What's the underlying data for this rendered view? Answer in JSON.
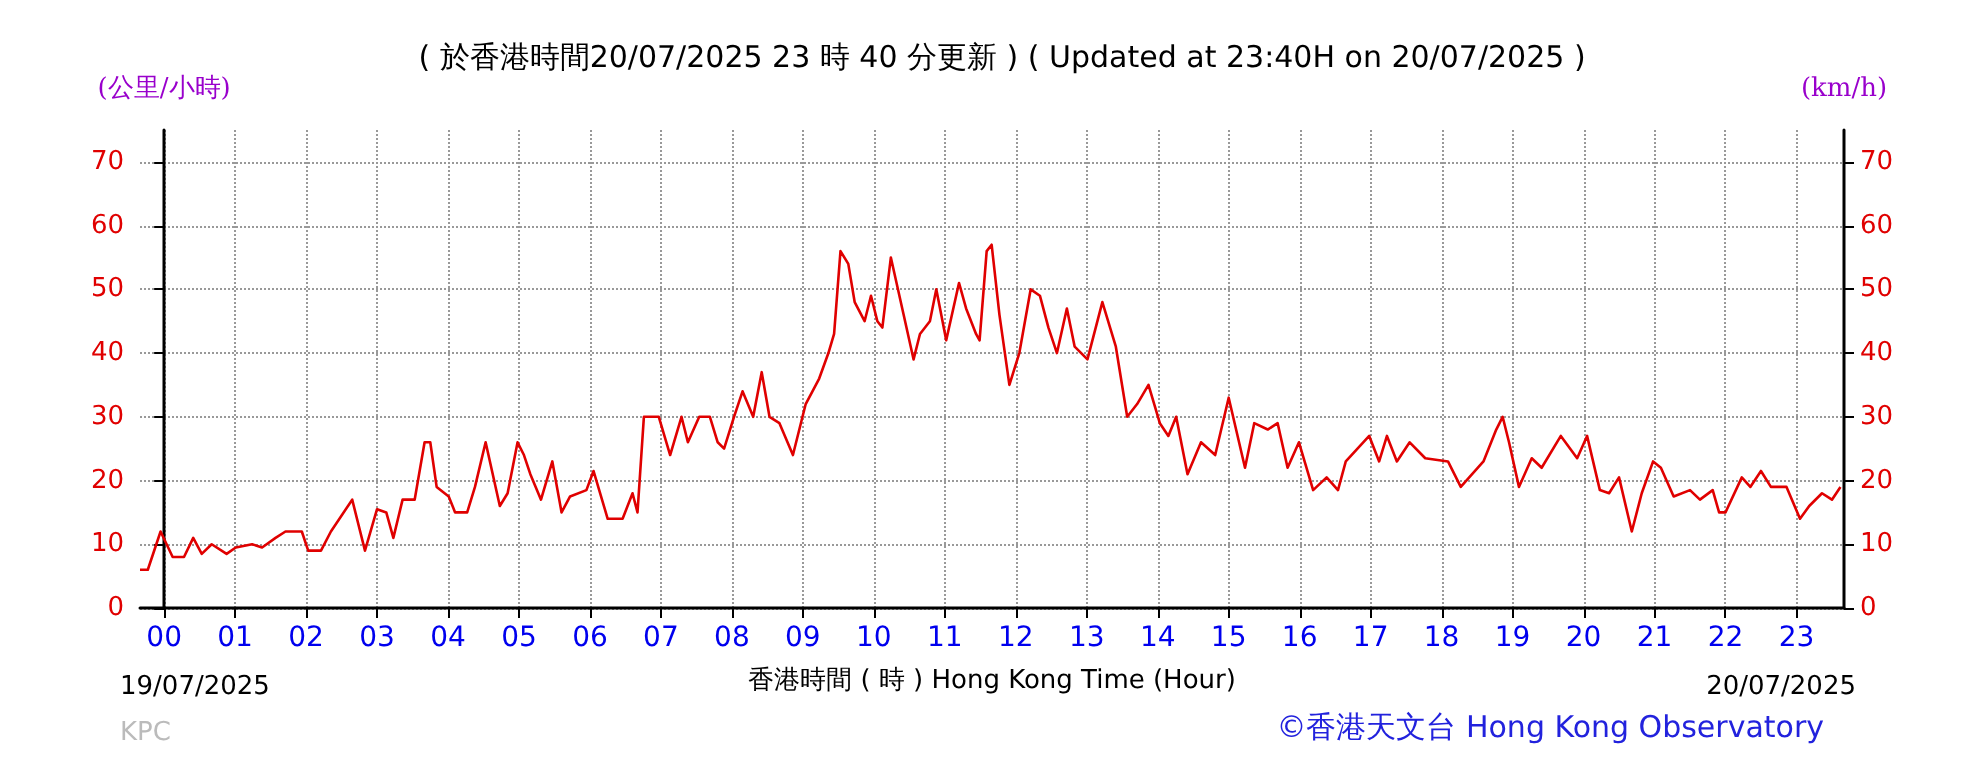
{
  "chart_data": {
    "type": "line",
    "title": "( 於香港時間20/07/2025 23 時 40 分更新 ) ( Updated at 23:40H on 20/07/2025 )",
    "xlabel": "香港時間 ( 時 ) Hong Kong Time (Hour)",
    "ylabel": "(公里/小時)",
    "y2label": "(km/h)",
    "annotations": [
      "19/07/2025",
      "20/07/2025",
      "KPC",
      "©香港天文台 Hong Kong Observatory"
    ],
    "series": [
      {
        "color": "#e00000",
        "x": [
          -0.34,
          -0.23,
          -0.05,
          0.12,
          0.28,
          0.41,
          0.53,
          0.67,
          0.88,
          1.01,
          1.24,
          1.38,
          1.57,
          1.71,
          1.94,
          2.03,
          2.21,
          2.35,
          2.65,
          2.83,
          3.0,
          3.13,
          3.23,
          3.36,
          3.53,
          3.67,
          3.75,
          3.84,
          4.01,
          4.1,
          4.27,
          4.38,
          4.53,
          4.73,
          4.84,
          4.98,
          5.07,
          5.16,
          5.31,
          5.47,
          5.6,
          5.72,
          5.95,
          6.05,
          6.25,
          6.46,
          6.6,
          6.67,
          6.76,
          6.97,
          7.13,
          7.29,
          7.38,
          7.54,
          7.69,
          7.8,
          7.89,
          8.03,
          8.15,
          8.3,
          8.42,
          8.53,
          8.67,
          8.86,
          9.04,
          9.23,
          9.36,
          9.44,
          9.53,
          9.64,
          9.73,
          9.87,
          9.96,
          10.05,
          10.12,
          10.24,
          10.42,
          10.56,
          10.65,
          10.79,
          10.88,
          11.02,
          11.2,
          11.3,
          11.44,
          11.49,
          11.59,
          11.66,
          11.77,
          11.91,
          12.05,
          12.21,
          12.34,
          12.46,
          12.58,
          12.72,
          12.83,
          13.01,
          13.22,
          13.41,
          13.57,
          13.71,
          13.87,
          14.03,
          14.15,
          14.26,
          14.42,
          14.61,
          14.81,
          15.0,
          15.23,
          15.36,
          15.55,
          15.69,
          15.83,
          15.99,
          16.19,
          16.38,
          16.54,
          16.65,
          16.98,
          17.12,
          17.23,
          17.37,
          17.55,
          17.77,
          18.09,
          18.27,
          18.59,
          18.77,
          18.86,
          18.95,
          19.09,
          19.27,
          19.41,
          19.68,
          19.91,
          20.05,
          20.23,
          20.36,
          20.5,
          20.68,
          20.82,
          20.98,
          21.09,
          21.27,
          21.5,
          21.64,
          21.82,
          21.91,
          22.0,
          22.23,
          22.35,
          22.5,
          22.64,
          22.86,
          23.05,
          23.18,
          23.36,
          23.5,
          23.62
        ],
        "values": [
          6,
          6,
          12,
          8,
          8,
          11,
          8.5,
          10,
          8.5,
          9.5,
          10,
          9.5,
          11,
          12,
          12,
          9,
          9,
          12,
          17,
          9,
          15.5,
          15,
          11,
          17,
          17,
          26,
          26,
          19,
          17.5,
          15,
          15,
          19,
          26,
          16,
          18,
          26,
          24,
          21,
          17,
          23,
          15,
          17.5,
          18.5,
          21.5,
          14,
          14,
          18,
          15,
          30,
          30,
          24,
          30,
          26,
          30,
          30,
          26,
          25,
          30,
          34,
          30,
          37,
          30,
          29,
          24,
          32,
          36,
          40,
          43,
          56,
          54,
          48,
          45,
          49,
          45,
          44,
          55,
          46,
          39,
          43,
          45,
          50,
          42,
          51,
          47,
          43,
          42,
          56,
          57,
          46,
          35,
          40,
          50,
          49,
          44,
          40,
          47,
          41,
          39,
          48,
          41,
          30,
          32,
          35,
          29,
          27,
          30,
          21,
          26,
          24,
          33,
          22,
          29,
          28,
          29,
          22,
          26,
          18.5,
          20.5,
          18.5,
          23,
          27,
          23,
          27,
          23,
          26,
          23.5,
          23,
          19,
          23,
          28,
          30,
          26,
          19,
          23.5,
          22,
          27,
          23.5,
          27,
          18.5,
          18,
          20.5,
          12,
          18,
          23,
          22,
          17.5,
          18.5,
          17,
          18.5,
          15,
          15,
          20.5,
          19,
          21.5,
          19,
          19,
          14,
          16,
          18,
          17,
          19
        ]
      }
    ],
    "xlim": [
      -0.34,
      23.67
    ],
    "xticks": [
      {
        "value": 0,
        "label": "00"
      },
      {
        "value": 1,
        "label": "01"
      },
      {
        "value": 2,
        "label": "02"
      },
      {
        "value": 3,
        "label": "03"
      },
      {
        "value": 4,
        "label": "04"
      },
      {
        "value": 5,
        "label": "05"
      },
      {
        "value": 6,
        "label": "06"
      },
      {
        "value": 7,
        "label": "07"
      },
      {
        "value": 8,
        "label": "08"
      },
      {
        "value": 9,
        "label": "09"
      },
      {
        "value": 10,
        "label": "10"
      },
      {
        "value": 11,
        "label": "11"
      },
      {
        "value": 12,
        "label": "12"
      },
      {
        "value": 13,
        "label": "13"
      },
      {
        "value": 14,
        "label": "14"
      },
      {
        "value": 15,
        "label": "15"
      },
      {
        "value": 16,
        "label": "16"
      },
      {
        "value": 17,
        "label": "17"
      },
      {
        "value": 18,
        "label": "18"
      },
      {
        "value": 19,
        "label": "19"
      },
      {
        "value": 20,
        "label": "20"
      },
      {
        "value": 21,
        "label": "21"
      },
      {
        "value": 22,
        "label": "22"
      },
      {
        "value": 23,
        "label": "23"
      }
    ],
    "ylim": [
      0,
      75
    ],
    "yticks": [
      0,
      10,
      20,
      30,
      40,
      50,
      60,
      70
    ],
    "y2lim": [
      0,
      75
    ],
    "y2ticks": [
      0,
      10,
      20,
      30,
      40,
      50,
      60,
      70
    ],
    "grid": true,
    "marker": "none",
    "line_style": "solid"
  }
}
